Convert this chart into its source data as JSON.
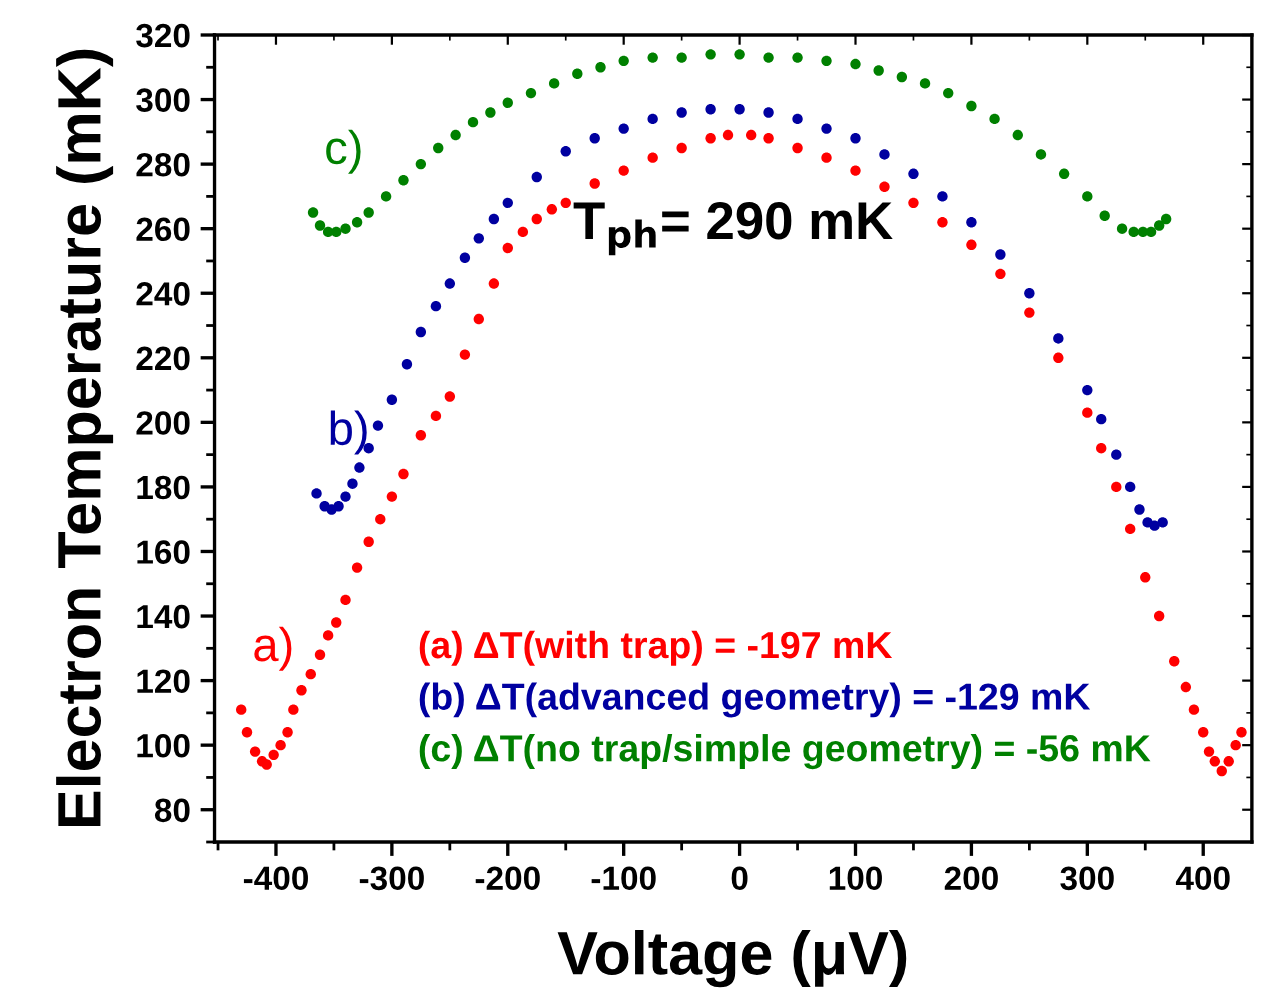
{
  "chart_data": {
    "type": "scatter",
    "xlabel": "Voltage (μV)",
    "ylabel": "Electron Temperature (mK)",
    "xlim": [
      -453,
      442
    ],
    "ylim": [
      70,
      320
    ],
    "xticks": [
      -400,
      -300,
      -200,
      -100,
      0,
      100,
      200,
      300,
      400
    ],
    "yticks": [
      80,
      100,
      120,
      140,
      160,
      180,
      200,
      220,
      240,
      260,
      280,
      300,
      320
    ],
    "marker": "circle",
    "grid": false,
    "legend": false,
    "series": [
      {
        "name": "a)",
        "color": "#ff0000",
        "x": [
          -430,
          -425,
          -418,
          -412,
          -408,
          -402,
          -396,
          -390,
          -385,
          -378,
          -370,
          -362,
          -355,
          -348,
          -340,
          -330,
          -320,
          -310,
          -300,
          -290,
          -275,
          -262,
          -250,
          -237,
          -225,
          -212,
          -200,
          -187,
          -175,
          -162,
          -150,
          -125,
          -100,
          -75,
          -50,
          -25,
          -10,
          10,
          25,
          50,
          75,
          100,
          125,
          150,
          175,
          200,
          225,
          250,
          275,
          300,
          312,
          325,
          337,
          350,
          362,
          375,
          385,
          392,
          400,
          405,
          410,
          416,
          422,
          428,
          433
        ],
        "values": [
          111,
          104,
          98,
          95,
          94,
          97,
          100,
          104,
          111,
          117,
          122,
          128,
          134,
          138,
          145,
          155,
          163,
          170,
          177,
          184,
          196,
          202,
          208,
          221,
          232,
          243,
          254,
          259,
          263,
          266,
          268,
          274,
          278,
          282,
          285,
          288,
          289,
          289,
          288,
          285,
          282,
          278,
          273,
          268,
          262,
          255,
          246,
          234,
          220,
          203,
          192,
          180,
          167,
          152,
          140,
          126,
          118,
          111,
          104,
          98,
          95,
          92,
          95,
          100,
          104
        ]
      },
      {
        "name": "b)",
        "color": "#0000a0",
        "x": [
          -365,
          -358,
          -352,
          -346,
          -340,
          -334,
          -328,
          -320,
          -312,
          -300,
          -287,
          -275,
          -262,
          -250,
          -237,
          -225,
          -212,
          -200,
          -175,
          -150,
          -125,
          -100,
          -75,
          -50,
          -25,
          0,
          25,
          50,
          75,
          100,
          125,
          150,
          175,
          200,
          225,
          250,
          275,
          300,
          312,
          325,
          337,
          345,
          352,
          358,
          365
        ],
        "values": [
          178,
          174,
          173,
          174,
          177,
          181,
          186,
          192,
          199,
          207,
          218,
          228,
          236,
          243,
          251,
          257,
          263,
          268,
          276,
          284,
          288,
          291,
          294,
          296,
          297,
          297,
          296,
          294,
          291,
          288,
          283,
          277,
          270,
          262,
          252,
          240,
          226,
          210,
          201,
          190,
          180,
          173,
          169,
          168,
          169
        ]
      },
      {
        "name": "c)",
        "color": "#008000",
        "x": [
          -368,
          -362,
          -355,
          -348,
          -340,
          -330,
          -320,
          -305,
          -290,
          -275,
          -260,
          -245,
          -230,
          -215,
          -200,
          -180,
          -160,
          -140,
          -120,
          -100,
          -75,
          -50,
          -25,
          0,
          25,
          50,
          75,
          100,
          120,
          140,
          160,
          180,
          200,
          220,
          240,
          260,
          280,
          300,
          315,
          330,
          340,
          348,
          355,
          362,
          368
        ],
        "values": [
          265,
          261,
          259,
          259,
          260,
          262,
          265,
          270,
          275,
          280,
          285,
          289,
          293,
          296,
          299,
          302,
          305,
          308,
          310,
          312,
          313,
          313,
          314,
          314,
          313,
          313,
          312,
          311,
          309,
          307,
          305,
          302,
          298,
          294,
          289,
          283,
          277,
          270,
          264,
          260,
          259,
          259,
          259,
          261,
          263
        ]
      }
    ],
    "annotations": [
      "T$_{ph}$= 290 mK",
      "(a) ΔT(with trap) = -197 mK",
      "(b) ΔT(advanced geometry) = -129 mK",
      "(c) ΔT(no trap/simple geometry) = -56 mK"
    ]
  }
}
